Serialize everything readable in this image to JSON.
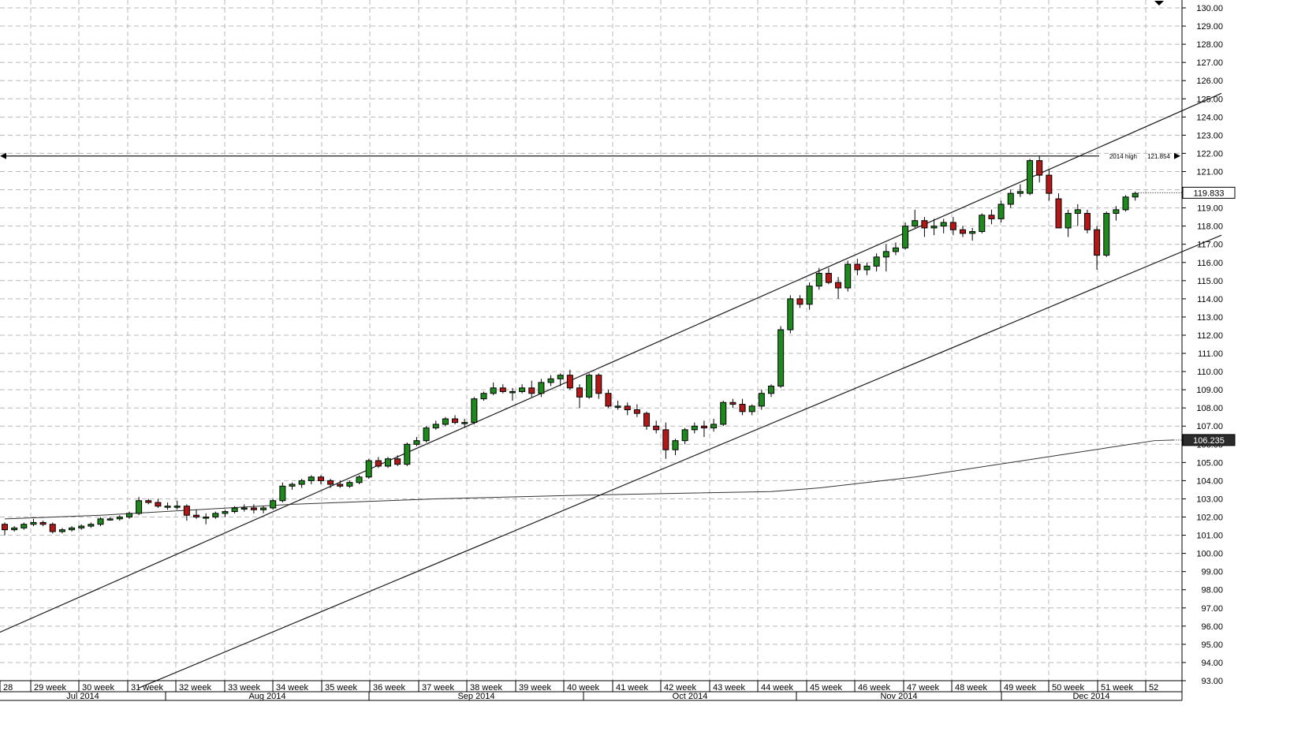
{
  "chart_data": {
    "type": "candlestick",
    "ylim": [
      93,
      130
    ],
    "y_tick_step": 1,
    "grid": true,
    "x_week_labels": [
      "28",
      "29 week",
      "30 week",
      "31 week",
      "32 week",
      "33 week",
      "34 week",
      "35 week",
      "36 week",
      "37 week",
      "38 week",
      "39 week",
      "40 week",
      "41 week",
      "42 week",
      "43 week",
      "44 week",
      "45 week",
      "46 week",
      "47 week",
      "48 week",
      "49 week",
      "50 week",
      "51 week",
      "52"
    ],
    "x_month_labels": [
      "Jul 2014",
      "Aug 2014",
      "Sep 2014",
      "Oct 2014",
      "Nov 2014",
      "Dec 2014"
    ],
    "annotations": {
      "high_label": "2014 high",
      "high_value": "121.854",
      "high_level": 121.854,
      "current_price": "119.833",
      "current_level": 119.833,
      "ma_value": "106.235",
      "ma_level": 106.235
    },
    "candles": [
      {
        "o": 101.6,
        "h": 101.7,
        "l": 101.0,
        "c": 101.3
      },
      {
        "o": 101.3,
        "h": 101.5,
        "l": 101.2,
        "c": 101.4
      },
      {
        "o": 101.4,
        "h": 101.7,
        "l": 101.3,
        "c": 101.6
      },
      {
        "o": 101.6,
        "h": 101.9,
        "l": 101.5,
        "c": 101.7
      },
      {
        "o": 101.7,
        "h": 101.8,
        "l": 101.5,
        "c": 101.6
      },
      {
        "o": 101.6,
        "h": 101.7,
        "l": 101.1,
        "c": 101.2
      },
      {
        "o": 101.2,
        "h": 101.4,
        "l": 101.1,
        "c": 101.3
      },
      {
        "o": 101.3,
        "h": 101.5,
        "l": 101.2,
        "c": 101.4
      },
      {
        "o": 101.4,
        "h": 101.6,
        "l": 101.3,
        "c": 101.5
      },
      {
        "o": 101.5,
        "h": 101.7,
        "l": 101.4,
        "c": 101.6
      },
      {
        "o": 101.6,
        "h": 102.0,
        "l": 101.5,
        "c": 101.9
      },
      {
        "o": 101.9,
        "h": 102.0,
        "l": 101.8,
        "c": 101.9
      },
      {
        "o": 101.9,
        "h": 102.1,
        "l": 101.8,
        "c": 102.0
      },
      {
        "o": 102.0,
        "h": 102.3,
        "l": 101.9,
        "c": 102.2
      },
      {
        "o": 102.2,
        "h": 103.1,
        "l": 102.1,
        "c": 102.9
      },
      {
        "o": 102.9,
        "h": 103.0,
        "l": 102.7,
        "c": 102.8
      },
      {
        "o": 102.8,
        "h": 103.0,
        "l": 102.5,
        "c": 102.6
      },
      {
        "o": 102.6,
        "h": 102.8,
        "l": 102.4,
        "c": 102.6
      },
      {
        "o": 102.6,
        "h": 102.9,
        "l": 102.4,
        "c": 102.6
      },
      {
        "o": 102.6,
        "h": 102.7,
        "l": 101.8,
        "c": 102.1
      },
      {
        "o": 102.1,
        "h": 102.4,
        "l": 101.9,
        "c": 102.0
      },
      {
        "o": 102.0,
        "h": 102.2,
        "l": 101.6,
        "c": 102.0
      },
      {
        "o": 102.0,
        "h": 102.3,
        "l": 101.9,
        "c": 102.2
      },
      {
        "o": 102.2,
        "h": 102.4,
        "l": 102.0,
        "c": 102.3
      },
      {
        "o": 102.3,
        "h": 102.6,
        "l": 102.2,
        "c": 102.5
      },
      {
        "o": 102.5,
        "h": 102.7,
        "l": 102.3,
        "c": 102.5
      },
      {
        "o": 102.5,
        "h": 102.7,
        "l": 102.2,
        "c": 102.4
      },
      {
        "o": 102.4,
        "h": 102.6,
        "l": 102.2,
        "c": 102.5
      },
      {
        "o": 102.5,
        "h": 103.0,
        "l": 102.4,
        "c": 102.9
      },
      {
        "o": 102.9,
        "h": 103.9,
        "l": 102.8,
        "c": 103.7
      },
      {
        "o": 103.7,
        "h": 103.9,
        "l": 103.5,
        "c": 103.8
      },
      {
        "o": 103.8,
        "h": 104.1,
        "l": 103.6,
        "c": 104.0
      },
      {
        "o": 104.0,
        "h": 104.3,
        "l": 103.8,
        "c": 104.2
      },
      {
        "o": 104.2,
        "h": 104.3,
        "l": 103.8,
        "c": 104.0
      },
      {
        "o": 104.0,
        "h": 104.1,
        "l": 103.6,
        "c": 103.8
      },
      {
        "o": 103.8,
        "h": 104.0,
        "l": 103.6,
        "c": 103.7
      },
      {
        "o": 103.7,
        "h": 104.0,
        "l": 103.6,
        "c": 103.9
      },
      {
        "o": 103.9,
        "h": 104.3,
        "l": 103.8,
        "c": 104.2
      },
      {
        "o": 104.2,
        "h": 105.2,
        "l": 104.1,
        "c": 105.1
      },
      {
        "o": 105.1,
        "h": 105.3,
        "l": 104.7,
        "c": 104.8
      },
      {
        "o": 104.8,
        "h": 105.3,
        "l": 104.7,
        "c": 105.2
      },
      {
        "o": 105.2,
        "h": 105.4,
        "l": 104.8,
        "c": 104.9
      },
      {
        "o": 104.9,
        "h": 106.1,
        "l": 104.8,
        "c": 106.0
      },
      {
        "o": 106.0,
        "h": 106.4,
        "l": 105.9,
        "c": 106.2
      },
      {
        "o": 106.2,
        "h": 107.0,
        "l": 106.1,
        "c": 106.9
      },
      {
        "o": 106.9,
        "h": 107.3,
        "l": 106.8,
        "c": 107.1
      },
      {
        "o": 107.1,
        "h": 107.5,
        "l": 107.0,
        "c": 107.4
      },
      {
        "o": 107.4,
        "h": 107.6,
        "l": 107.1,
        "c": 107.2
      },
      {
        "o": 107.2,
        "h": 107.4,
        "l": 106.9,
        "c": 107.2
      },
      {
        "o": 107.2,
        "h": 108.6,
        "l": 107.1,
        "c": 108.5
      },
      {
        "o": 108.5,
        "h": 108.9,
        "l": 108.4,
        "c": 108.8
      },
      {
        "o": 108.8,
        "h": 109.4,
        "l": 108.7,
        "c": 109.1
      },
      {
        "o": 109.1,
        "h": 109.3,
        "l": 108.8,
        "c": 108.9
      },
      {
        "o": 108.9,
        "h": 109.1,
        "l": 108.4,
        "c": 108.9
      },
      {
        "o": 108.9,
        "h": 109.3,
        "l": 108.8,
        "c": 109.1
      },
      {
        "o": 109.1,
        "h": 109.5,
        "l": 108.6,
        "c": 108.8
      },
      {
        "o": 108.8,
        "h": 109.6,
        "l": 108.6,
        "c": 109.4
      },
      {
        "o": 109.4,
        "h": 109.8,
        "l": 109.2,
        "c": 109.6
      },
      {
        "o": 109.6,
        "h": 109.9,
        "l": 109.2,
        "c": 109.8
      },
      {
        "o": 109.8,
        "h": 110.1,
        "l": 109.0,
        "c": 109.1
      },
      {
        "o": 109.1,
        "h": 109.3,
        "l": 108.0,
        "c": 108.6
      },
      {
        "o": 108.6,
        "h": 109.9,
        "l": 108.5,
        "c": 109.8
      },
      {
        "o": 109.8,
        "h": 109.9,
        "l": 108.5,
        "c": 108.8
      },
      {
        "o": 108.8,
        "h": 109.0,
        "l": 108.0,
        "c": 108.1
      },
      {
        "o": 108.1,
        "h": 108.4,
        "l": 107.9,
        "c": 108.1
      },
      {
        "o": 108.1,
        "h": 108.3,
        "l": 107.6,
        "c": 107.9
      },
      {
        "o": 107.9,
        "h": 108.2,
        "l": 107.5,
        "c": 107.7
      },
      {
        "o": 107.7,
        "h": 107.8,
        "l": 106.8,
        "c": 107.0
      },
      {
        "o": 107.0,
        "h": 107.3,
        "l": 106.6,
        "c": 106.8
      },
      {
        "o": 106.8,
        "h": 107.2,
        "l": 105.2,
        "c": 105.7
      },
      {
        "o": 105.7,
        "h": 106.3,
        "l": 105.4,
        "c": 106.2
      },
      {
        "o": 106.2,
        "h": 106.9,
        "l": 106.0,
        "c": 106.8
      },
      {
        "o": 106.8,
        "h": 107.2,
        "l": 106.6,
        "c": 107.0
      },
      {
        "o": 107.0,
        "h": 107.3,
        "l": 106.4,
        "c": 106.9
      },
      {
        "o": 106.9,
        "h": 107.4,
        "l": 106.7,
        "c": 107.1
      },
      {
        "o": 107.1,
        "h": 108.4,
        "l": 107.0,
        "c": 108.3
      },
      {
        "o": 108.3,
        "h": 108.5,
        "l": 108.0,
        "c": 108.2
      },
      {
        "o": 108.2,
        "h": 108.5,
        "l": 107.6,
        "c": 107.8
      },
      {
        "o": 107.8,
        "h": 108.2,
        "l": 107.6,
        "c": 108.1
      },
      {
        "o": 108.1,
        "h": 109.0,
        "l": 107.9,
        "c": 108.8
      },
      {
        "o": 108.8,
        "h": 109.3,
        "l": 108.6,
        "c": 109.2
      },
      {
        "o": 109.2,
        "h": 112.5,
        "l": 109.1,
        "c": 112.3
      },
      {
        "o": 112.3,
        "h": 114.2,
        "l": 112.1,
        "c": 114.0
      },
      {
        "o": 114.0,
        "h": 114.2,
        "l": 113.5,
        "c": 113.7
      },
      {
        "o": 113.7,
        "h": 114.9,
        "l": 113.4,
        "c": 114.7
      },
      {
        "o": 114.7,
        "h": 115.7,
        "l": 114.5,
        "c": 115.4
      },
      {
        "o": 115.4,
        "h": 115.7,
        "l": 114.8,
        "c": 114.9
      },
      {
        "o": 114.9,
        "h": 115.2,
        "l": 114.0,
        "c": 114.6
      },
      {
        "o": 114.6,
        "h": 116.1,
        "l": 114.4,
        "c": 115.9
      },
      {
        "o": 115.9,
        "h": 116.2,
        "l": 115.3,
        "c": 115.6
      },
      {
        "o": 115.6,
        "h": 116.0,
        "l": 115.3,
        "c": 115.8
      },
      {
        "o": 115.8,
        "h": 116.5,
        "l": 115.5,
        "c": 116.3
      },
      {
        "o": 116.3,
        "h": 117.0,
        "l": 115.5,
        "c": 116.6
      },
      {
        "o": 116.6,
        "h": 117.1,
        "l": 116.4,
        "c": 116.8
      },
      {
        "o": 116.8,
        "h": 118.2,
        "l": 116.7,
        "c": 118.0
      },
      {
        "o": 118.0,
        "h": 118.9,
        "l": 117.9,
        "c": 118.3
      },
      {
        "o": 118.3,
        "h": 118.5,
        "l": 117.4,
        "c": 117.9
      },
      {
        "o": 117.9,
        "h": 118.4,
        "l": 117.5,
        "c": 118.0
      },
      {
        "o": 118.0,
        "h": 118.4,
        "l": 117.6,
        "c": 118.2
      },
      {
        "o": 118.2,
        "h": 118.5,
        "l": 117.5,
        "c": 117.8
      },
      {
        "o": 117.8,
        "h": 118.0,
        "l": 117.4,
        "c": 117.6
      },
      {
        "o": 117.6,
        "h": 117.9,
        "l": 117.2,
        "c": 117.7
      },
      {
        "o": 117.7,
        "h": 118.7,
        "l": 117.6,
        "c": 118.6
      },
      {
        "o": 118.6,
        "h": 118.9,
        "l": 118.1,
        "c": 118.4
      },
      {
        "o": 118.4,
        "h": 119.4,
        "l": 118.2,
        "c": 119.2
      },
      {
        "o": 119.2,
        "h": 120.0,
        "l": 119.0,
        "c": 119.8
      },
      {
        "o": 119.8,
        "h": 120.3,
        "l": 119.6,
        "c": 119.9
      },
      {
        "o": 119.8,
        "h": 121.7,
        "l": 119.7,
        "c": 121.6
      },
      {
        "o": 121.6,
        "h": 121.85,
        "l": 120.4,
        "c": 120.8
      },
      {
        "o": 120.8,
        "h": 121.1,
        "l": 119.4,
        "c": 119.8
      },
      {
        "o": 119.5,
        "h": 119.8,
        "l": 117.9,
        "c": 117.9
      },
      {
        "o": 117.9,
        "h": 118.9,
        "l": 117.4,
        "c": 118.7
      },
      {
        "o": 118.7,
        "h": 119.2,
        "l": 118.0,
        "c": 118.9
      },
      {
        "o": 118.7,
        "h": 118.9,
        "l": 117.6,
        "c": 117.8
      },
      {
        "o": 117.8,
        "h": 118.0,
        "l": 115.6,
        "c": 116.4
      },
      {
        "o": 116.4,
        "h": 118.8,
        "l": 116.3,
        "c": 118.7
      },
      {
        "o": 118.7,
        "h": 119.1,
        "l": 118.3,
        "c": 118.9
      },
      {
        "o": 118.9,
        "h": 119.7,
        "l": 118.8,
        "c": 119.6
      },
      {
        "o": 119.6,
        "h": 119.9,
        "l": 119.4,
        "c": 119.8
      }
    ],
    "moving_average": [
      [
        0,
        101.9
      ],
      [
        10,
        102.1
      ],
      [
        20,
        102.4
      ],
      [
        30,
        102.7
      ],
      [
        45,
        103.0
      ],
      [
        60,
        103.2
      ],
      [
        70,
        103.3
      ],
      [
        80,
        103.4
      ],
      [
        85,
        103.6
      ],
      [
        95,
        104.2
      ],
      [
        105,
        105.0
      ],
      [
        110,
        105.4
      ],
      [
        115,
        105.8
      ],
      [
        120,
        106.2
      ],
      [
        122,
        106.235
      ]
    ],
    "channel_lines": [
      {
        "from": [
          -1,
          95.55
        ],
        "to": [
          127,
          125.3
        ]
      },
      {
        "from": [
          14,
          92.6
        ],
        "to": [
          127,
          117.5
        ]
      }
    ]
  }
}
